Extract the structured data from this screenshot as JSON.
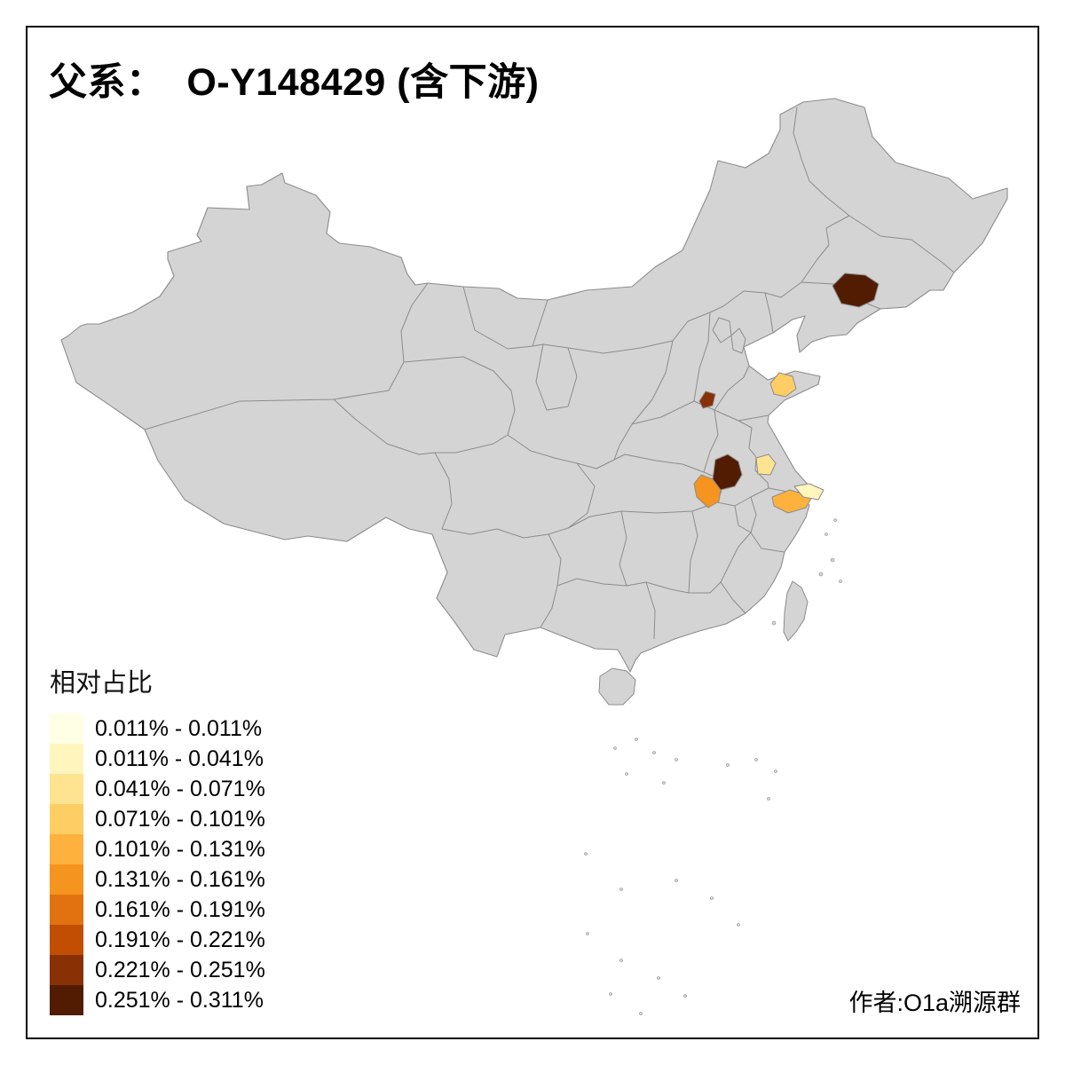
{
  "page": {
    "background": "#ffffff",
    "frame_color": "#000000"
  },
  "title": {
    "text": "父系：  O-Y148429 (含下游)"
  },
  "attribution": {
    "text": "作者:O1a溯源群"
  },
  "legend": {
    "title": "相对占比",
    "classes": [
      {
        "label": "0.011% - 0.011%",
        "color": "#FFFFE5"
      },
      {
        "label": "0.011% - 0.041%",
        "color": "#FFF5BD"
      },
      {
        "label": "0.041% - 0.071%",
        "color": "#FEE391"
      },
      {
        "label": "0.071% - 0.101%",
        "color": "#FECE65"
      },
      {
        "label": "0.101% - 0.131%",
        "color": "#FEB13C"
      },
      {
        "label": "0.131% - 0.161%",
        "color": "#F5941E"
      },
      {
        "label": "0.161% - 0.191%",
        "color": "#E2720F"
      },
      {
        "label": "0.191% - 0.221%",
        "color": "#C24E04"
      },
      {
        "label": "0.221% - 0.251%",
        "color": "#8A3005"
      },
      {
        "label": "0.251% - 0.311%",
        "color": "#521C03"
      }
    ]
  },
  "map": {
    "land_color": "#D4D4D4",
    "border_color": "#8C8C8C",
    "sea_color": "#FFFFFF",
    "regions": [
      {
        "id": "r1",
        "approx_location": "northeast China",
        "class_index": 9
      },
      {
        "id": "r2",
        "approx_location": "north Henan area",
        "class_index": 8
      },
      {
        "id": "r3",
        "approx_location": "Shandong peninsula",
        "class_index": 3
      },
      {
        "id": "r4",
        "approx_location": "west Anhui",
        "class_index": 9
      },
      {
        "id": "r5",
        "approx_location": "east Hubei",
        "class_index": 5
      },
      {
        "id": "r6",
        "approx_location": "central Anhui",
        "class_index": 2
      },
      {
        "id": "r7",
        "approx_location": "south Jiangsu / north Zhejiang coast",
        "class_index": 4
      },
      {
        "id": "r8",
        "approx_location": "Shanghai area",
        "class_index": 1
      }
    ]
  },
  "chart_data": {
    "type": "choropleth",
    "title": "父系： O-Y148429 (含下游)",
    "legend_title": "相对占比",
    "unit": "%",
    "class_breaks": [
      0.011,
      0.011,
      0.041,
      0.071,
      0.101,
      0.131,
      0.161,
      0.191,
      0.221,
      0.251,
      0.311
    ],
    "classes": [
      "0.011% - 0.011%",
      "0.011% - 0.041%",
      "0.041% - 0.071%",
      "0.071% - 0.101%",
      "0.101% - 0.131%",
      "0.131% - 0.161%",
      "0.161% - 0.191%",
      "0.191% - 0.221%",
      "0.221% - 0.251%",
      "0.251% - 0.311%"
    ],
    "highlighted_regions": [
      {
        "id": "r1",
        "approx_location": "northeast China",
        "value_range": "0.251% - 0.311%"
      },
      {
        "id": "r2",
        "approx_location": "north Henan area",
        "value_range": "0.221% - 0.251%"
      },
      {
        "id": "r3",
        "approx_location": "Shandong peninsula",
        "value_range": "0.071% - 0.101%"
      },
      {
        "id": "r4",
        "approx_location": "west Anhui",
        "value_range": "0.251% - 0.311%"
      },
      {
        "id": "r5",
        "approx_location": "east Hubei",
        "value_range": "0.131% - 0.161%"
      },
      {
        "id": "r6",
        "approx_location": "central Anhui",
        "value_range": "0.041% - 0.071%"
      },
      {
        "id": "r7",
        "approx_location": "south Jiangsu / north Zhejiang coast",
        "value_range": "0.101% - 0.131%"
      },
      {
        "id": "r8",
        "approx_location": "Shanghai area",
        "value_range": "0.011% - 0.041%"
      }
    ],
    "legend_position": "bottom-left",
    "annotations": [
      "作者:O1a溯源群"
    ]
  }
}
